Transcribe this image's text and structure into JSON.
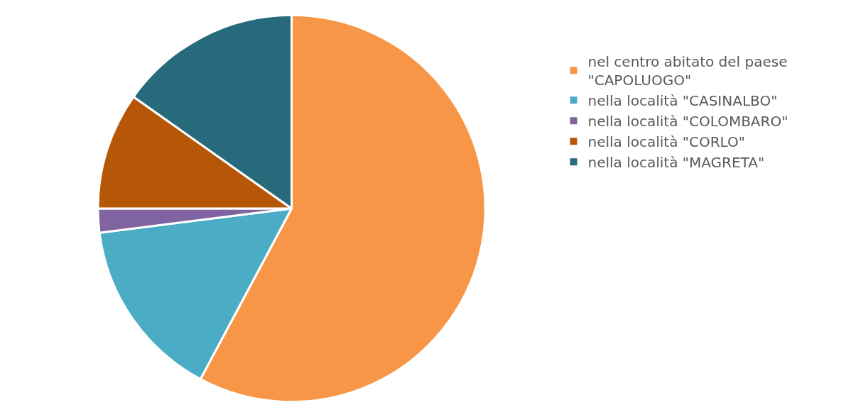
{
  "chart_data": {
    "type": "pie",
    "categories": [
      "nel centro abitato del paese \"CAPOLUOGO\"",
      "nella località \"CASINALBO\"",
      "nella località \"COLOMBARO\"",
      "nella località \"CORLO\"",
      "nella località \"MAGRETA\""
    ],
    "values": [
      57.8,
      15.2,
      2.0,
      9.8,
      15.2
    ],
    "colors": [
      "#f79646",
      "#4bacc6",
      "#8064a2",
      "#b65708",
      "#276a7c"
    ],
    "legend": "right"
  }
}
